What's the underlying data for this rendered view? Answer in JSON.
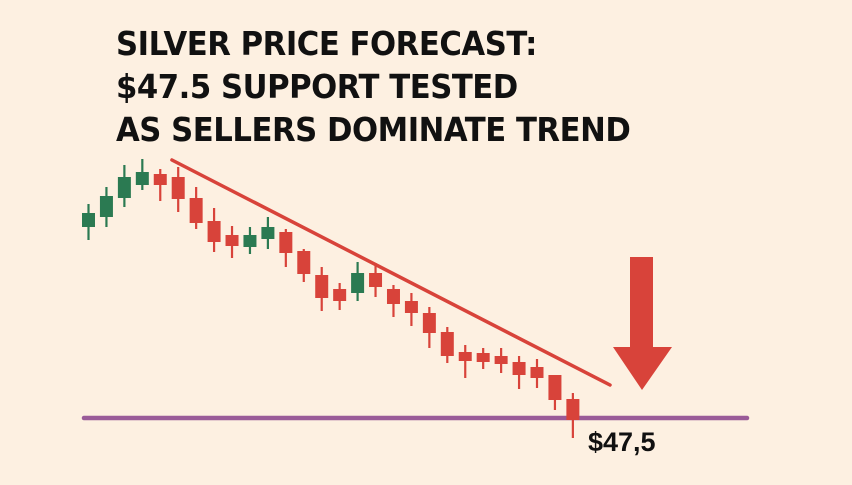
{
  "title_lines": [
    "SILVER PRICE FORECAST:",
    "$47.5 SUPPORT TESTED",
    "AS SELLERS DOMINATE TREND"
  ],
  "colors": {
    "background": "#fdf0e1",
    "bullish": "#2b7a52",
    "bearish": "#d8433a",
    "support": "#9a5b98",
    "trendline": "#d8433a",
    "arrow": "#d8433a"
  },
  "chart_data": {
    "type": "candlestick",
    "title": "",
    "xlabel": "",
    "ylabel": "",
    "grid": false,
    "axes_visible": false,
    "ylim": [
      46.8,
      53.2
    ],
    "candles": [
      {
        "o": 51.32,
        "h": 51.78,
        "l": 51.06,
        "c": 51.6
      },
      {
        "o": 51.52,
        "h": 52.12,
        "l": 51.32,
        "c": 51.94
      },
      {
        "o": 51.9,
        "h": 52.56,
        "l": 51.72,
        "c": 52.32
      },
      {
        "o": 52.16,
        "h": 52.68,
        "l": 52.06,
        "c": 52.42
      },
      {
        "o": 52.38,
        "h": 52.48,
        "l": 51.84,
        "c": 52.16
      },
      {
        "o": 52.32,
        "h": 52.52,
        "l": 51.62,
        "c": 51.88
      },
      {
        "o": 51.9,
        "h": 52.12,
        "l": 51.28,
        "c": 51.4
      },
      {
        "o": 51.44,
        "h": 51.7,
        "l": 50.82,
        "c": 51.02
      },
      {
        "o": 51.16,
        "h": 51.34,
        "l": 50.7,
        "c": 50.94
      },
      {
        "o": 50.92,
        "h": 51.32,
        "l": 50.78,
        "c": 51.16
      },
      {
        "o": 51.08,
        "h": 51.52,
        "l": 50.88,
        "c": 51.32
      },
      {
        "o": 51.22,
        "h": 51.28,
        "l": 50.52,
        "c": 50.8
      },
      {
        "o": 50.84,
        "h": 50.88,
        "l": 50.22,
        "c": 50.38
      },
      {
        "o": 50.36,
        "h": 50.52,
        "l": 49.64,
        "c": 49.9
      },
      {
        "o": 50.08,
        "h": 50.2,
        "l": 49.66,
        "c": 49.84
      },
      {
        "o": 50.0,
        "h": 50.62,
        "l": 49.84,
        "c": 50.4
      },
      {
        "o": 50.4,
        "h": 50.6,
        "l": 49.92,
        "c": 50.12
      },
      {
        "o": 50.08,
        "h": 50.16,
        "l": 49.52,
        "c": 49.78
      },
      {
        "o": 49.84,
        "h": 50.0,
        "l": 49.34,
        "c": 49.6
      },
      {
        "o": 49.6,
        "h": 49.72,
        "l": 48.9,
        "c": 49.2
      },
      {
        "o": 49.22,
        "h": 49.32,
        "l": 48.6,
        "c": 48.74
      },
      {
        "o": 48.82,
        "h": 48.96,
        "l": 48.3,
        "c": 48.64
      },
      {
        "o": 48.8,
        "h": 48.9,
        "l": 48.48,
        "c": 48.62
      },
      {
        "o": 48.74,
        "h": 48.9,
        "l": 48.4,
        "c": 48.58
      },
      {
        "o": 48.62,
        "h": 48.74,
        "l": 48.08,
        "c": 48.36
      },
      {
        "o": 48.52,
        "h": 48.68,
        "l": 48.1,
        "c": 48.3
      },
      {
        "o": 48.36,
        "h": 48.36,
        "l": 47.66,
        "c": 47.86
      },
      {
        "o": 47.88,
        "h": 48.0,
        "l": 47.1,
        "c": 47.46
      }
    ],
    "trendline": {
      "from": {
        "index": 4.65,
        "price": 52.66
      },
      "to": {
        "index": 29.07,
        "price": 48.16
      }
    },
    "support": {
      "price": 47.5,
      "label": "$47,5"
    },
    "annotation": "down-arrow"
  }
}
